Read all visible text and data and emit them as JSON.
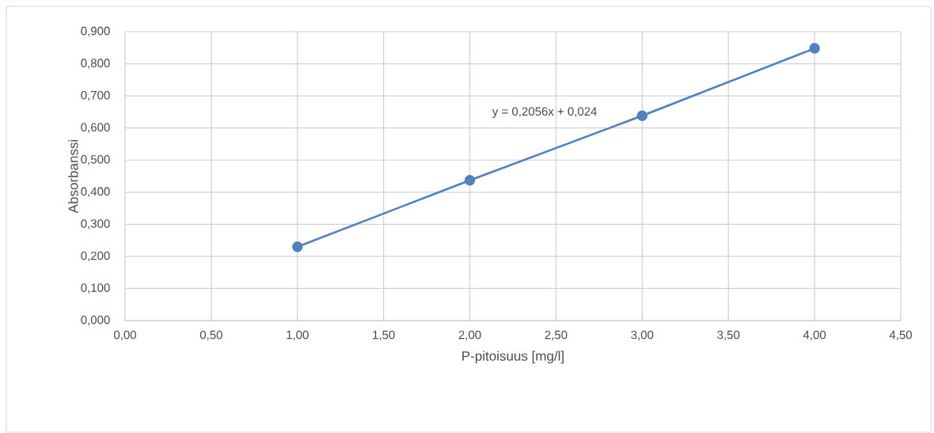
{
  "chart_data": {
    "type": "line",
    "xlabel": "P-pitoisuus [mg/l]",
    "ylabel": "Absorbanssi",
    "x": [
      1,
      2,
      3,
      4
    ],
    "series": [
      {
        "color": "#4f81bd",
        "values": [
          0.23,
          0.437,
          0.638,
          0.848
        ],
        "marker": "circle",
        "line_style": "solid"
      },
      {
        "type": "line",
        "color": "#4f81bd",
        "x": [
          1,
          4
        ],
        "values": [
          0.23,
          0.846
        ],
        "marker": "none",
        "line_style": "dotted"
      }
    ],
    "annotations": [
      "y = 0,2056x + 0,024"
    ],
    "xlim": [
      0,
      4.5
    ],
    "ylim": [
      0,
      0.9
    ],
    "xticks": [
      {
        "value": 0,
        "label": "0,00"
      },
      {
        "value": 0.5,
        "label": "0,50"
      },
      {
        "value": 1,
        "label": "1,00"
      },
      {
        "value": 1.5,
        "label": "1,50"
      },
      {
        "value": 2,
        "label": "2,00"
      },
      {
        "value": 2.5,
        "label": "2,50"
      },
      {
        "value": 3,
        "label": "3,00"
      },
      {
        "value": 3.5,
        "label": "3,50"
      },
      {
        "value": 4,
        "label": "4,00"
      },
      {
        "value": 4.5,
        "label": "4,50"
      }
    ],
    "yticks": [
      {
        "value": 0,
        "label": "0,000"
      },
      {
        "value": 0.1,
        "label": "0,100"
      },
      {
        "value": 0.2,
        "label": "0,200"
      },
      {
        "value": 0.3,
        "label": "0,300"
      },
      {
        "value": 0.4,
        "label": "0,400"
      },
      {
        "value": 0.5,
        "label": "0,500"
      },
      {
        "value": 0.6,
        "label": "0,600"
      },
      {
        "value": 0.7,
        "label": "0,700"
      },
      {
        "value": 0.8,
        "label": "0,800"
      },
      {
        "value": 0.9,
        "label": "0,900"
      }
    ],
    "grid": true,
    "legend": false
  }
}
